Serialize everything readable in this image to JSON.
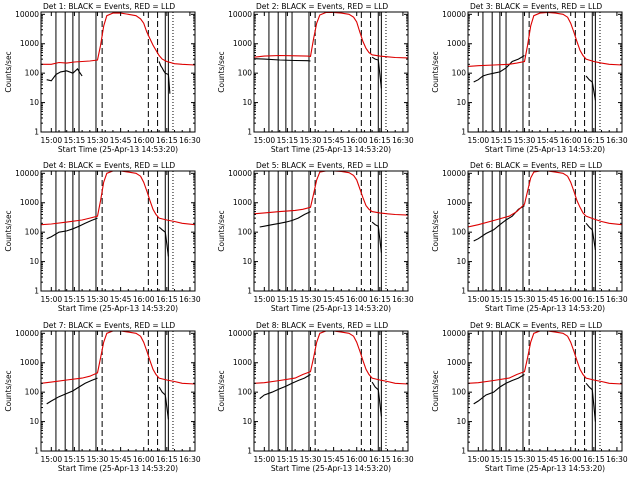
{
  "chart_data": {
    "type": "line",
    "layout": "3x3 grid",
    "yscale": "log",
    "ylim": [
      1,
      12000
    ],
    "y_ticks": [
      1,
      10,
      100,
      1000,
      10000
    ],
    "y_tick_labels": [
      "1",
      "10",
      "100",
      "1000",
      "10000"
    ],
    "ylabel": "Counts/sec",
    "xlabel": "Start Time (25-Apr-13 14:53:20)",
    "x_units": "minutes after 15:00",
    "xlim": [
      -6.7,
      93.3
    ],
    "x_ticks": [
      0,
      15,
      30,
      45,
      60,
      75,
      90
    ],
    "x_tick_labels": [
      "15:00",
      "15:15",
      "15:30",
      "15:45",
      "16:00",
      "16:15",
      "16:30"
    ],
    "series_legend": [
      {
        "name": "Events",
        "color": "#000000"
      },
      {
        "name": "LLD",
        "color": "#dd0000"
      }
    ],
    "vertical_markers": {
      "solid": [
        3,
        9,
        14,
        18,
        29
      ],
      "dashed": [
        33,
        63,
        69
      ],
      "dotted": [
        79
      ],
      "solid_late": [
        74,
        76
      ]
    },
    "panels": [
      {
        "title": "Det 1: BLACK = Events, RED = LLD",
        "series": [
          {
            "name": "Events",
            "x": [
              -3,
              0,
              1.5,
              3,
              6,
              10,
              14,
              17,
              18,
              20
            ],
            "y": [
              60,
              55,
              70,
              90,
              110,
              120,
              100,
              140,
              115,
              80
            ]
          },
          {
            "name": "LLD",
            "x": [
              -6.7,
              0,
              5,
              10,
              15,
              20,
              25,
              30,
              32,
              34,
              36,
              40,
              45,
              50,
              55,
              58,
              60,
              62,
              64,
              66,
              68,
              70,
              72,
              75,
              80,
              85,
              93.3
            ],
            "y": [
              200,
              200,
              230,
              220,
              240,
              250,
              260,
              280,
              900,
              4000,
              9000,
              11000,
              11000,
              10000,
              9000,
              7000,
              5000,
              2500,
              1500,
              900,
              600,
              400,
              300,
              250,
              210,
              200,
              190
            ]
          },
          {
            "name": "Events (late)",
            "x": [
              70,
              71,
              72,
              73,
              74,
              76,
              77
            ],
            "y": [
              250,
              180,
              150,
              120,
              100,
              90,
              20
            ]
          }
        ]
      },
      {
        "title": "Det 2: BLACK = Events, RED = LLD",
        "series": [
          {
            "name": "Events",
            "x": [
              -6.7,
              0,
              10,
              20,
              28,
              30
            ],
            "y": [
              310,
              300,
              280,
              270,
              265,
              260
            ]
          },
          {
            "name": "LLD",
            "x": [
              -6.7,
              0,
              10,
              20,
              28,
              30,
              32,
              34,
              36,
              40,
              45,
              50,
              55,
              58,
              60,
              62,
              64,
              66,
              68,
              70,
              75,
              80,
              85,
              93.3
            ],
            "y": [
              350,
              380,
              400,
              390,
              380,
              370,
              1500,
              5000,
              9500,
              11500,
              11500,
              11000,
              10000,
              8000,
              5500,
              2500,
              1200,
              700,
              500,
              420,
              380,
              360,
              340,
              330
            ]
          },
          {
            "name": "Events (late)",
            "x": [
              70,
              72,
              74,
              76
            ],
            "y": [
              350,
              300,
              280,
              30
            ]
          }
        ]
      },
      {
        "title": "Det 3: BLACK = Events, RED = LLD",
        "series": [
          {
            "name": "Events",
            "x": [
              -3,
              0,
              3,
              6,
              10,
              14,
              18,
              22,
              26,
              30
            ],
            "y": [
              50,
              60,
              80,
              90,
              100,
              110,
              150,
              250,
              300,
              400
            ]
          },
          {
            "name": "LLD",
            "x": [
              -6.7,
              0,
              10,
              20,
              25,
              30,
              32,
              34,
              36,
              40,
              45,
              50,
              55,
              58,
              60,
              62,
              64,
              66,
              68,
              70,
              75,
              80,
              85,
              93.3
            ],
            "y": [
              170,
              180,
              190,
              200,
              220,
              250,
              900,
              4000,
              9000,
              11000,
              11500,
              11000,
              10000,
              8000,
              5000,
              2500,
              1200,
              600,
              400,
              300,
              250,
              220,
              200,
              190
            ]
          },
          {
            "name": "Events (late)",
            "x": [
              70,
              72,
              74,
              76
            ],
            "y": [
              80,
              60,
              50,
              12
            ]
          }
        ]
      },
      {
        "title": "Det 4: BLACK = Events, RED = LLD",
        "series": [
          {
            "name": "Events",
            "x": [
              -3,
              0,
              5,
              10,
              14,
              18,
              22,
              26,
              30
            ],
            "y": [
              60,
              70,
              100,
              110,
              130,
              160,
              200,
              250,
              300
            ]
          },
          {
            "name": "LLD",
            "x": [
              -6.7,
              0,
              10,
              20,
              25,
              30,
              32,
              34,
              36,
              40,
              45,
              50,
              55,
              58,
              60,
              62,
              64,
              66,
              68,
              70,
              75,
              80,
              85,
              93.3
            ],
            "y": [
              180,
              190,
              220,
              260,
              300,
              350,
              1200,
              5000,
              10000,
              12000,
              12000,
              11000,
              10000,
              8000,
              5000,
              2500,
              1200,
              600,
              400,
              300,
              260,
              230,
              200,
              180
            ]
          },
          {
            "name": "Events (late)",
            "x": [
              70,
              72,
              74,
              76
            ],
            "y": [
              150,
              120,
              100,
              15
            ]
          }
        ]
      },
      {
        "title": "Det 5: BLACK = Events, RED = LLD",
        "series": [
          {
            "name": "Events",
            "x": [
              -3,
              0,
              5,
              10,
              14,
              18,
              22,
              26,
              30
            ],
            "y": [
              150,
              160,
              180,
              200,
              220,
              250,
              300,
              400,
              500
            ]
          },
          {
            "name": "LLD",
            "x": [
              -6.7,
              0,
              10,
              20,
              25,
              30,
              32,
              34,
              36,
              40,
              45,
              50,
              55,
              58,
              60,
              62,
              64,
              66,
              68,
              70,
              75,
              80,
              85,
              93.3
            ],
            "y": [
              420,
              450,
              500,
              550,
              600,
              700,
              2000,
              6000,
              11000,
              12000,
              12000,
              11500,
              10500,
              8500,
              6000,
              3000,
              1500,
              800,
              600,
              500,
              450,
              420,
              400,
              380
            ]
          },
          {
            "name": "Events (late)",
            "x": [
              70,
              72,
              74,
              76
            ],
            "y": [
              220,
              180,
              160,
              20
            ]
          }
        ]
      },
      {
        "title": "Det 6: BLACK = Events, RED = LLD",
        "series": [
          {
            "name": "Events",
            "x": [
              -3,
              0,
              5,
              10,
              14,
              18,
              22,
              26,
              30
            ],
            "y": [
              50,
              60,
              90,
              120,
              180,
              260,
              350,
              600,
              800
            ]
          },
          {
            "name": "LLD",
            "x": [
              -6.7,
              0,
              10,
              20,
              25,
              30,
              32,
              34,
              36,
              40,
              45,
              50,
              55,
              58,
              60,
              62,
              64,
              66,
              68,
              70,
              75,
              80,
              85,
              93.3
            ],
            "y": [
              150,
              180,
              250,
              350,
              500,
              900,
              2500,
              7000,
              11000,
              12000,
              12000,
              11000,
              10000,
              8000,
              5000,
              2500,
              1200,
              700,
              450,
              350,
              280,
              230,
              200,
              180
            ]
          },
          {
            "name": "Events (late)",
            "x": [
              70,
              72,
              74,
              76
            ],
            "y": [
              200,
              150,
              120,
              25
            ]
          }
        ]
      },
      {
        "title": "Det 7: BLACK = Events, RED = LLD",
        "series": [
          {
            "name": "Events",
            "x": [
              -3,
              0,
              5,
              10,
              14,
              18,
              22,
              26,
              30
            ],
            "y": [
              40,
              50,
              70,
              90,
              110,
              150,
              200,
              250,
              300
            ]
          },
          {
            "name": "LLD",
            "x": [
              -6.7,
              0,
              10,
              20,
              25,
              30,
              32,
              34,
              36,
              40,
              45,
              50,
              55,
              58,
              60,
              62,
              64,
              66,
              68,
              70,
              75,
              80,
              85,
              93.3
            ],
            "y": [
              200,
              220,
              260,
              300,
              350,
              450,
              1500,
              5000,
              10000,
              12000,
              12000,
              11000,
              10000,
              8000,
              5000,
              2500,
              1200,
              600,
              400,
              300,
              260,
              230,
              200,
              190
            ]
          },
          {
            "name": "Events (late)",
            "x": [
              70,
              72,
              74,
              76
            ],
            "y": [
              150,
              100,
              80,
              12
            ]
          }
        ]
      },
      {
        "title": "Det 8: BLACK = Events, RED = LLD",
        "series": [
          {
            "name": "Events",
            "x": [
              -3,
              0,
              5,
              10,
              14,
              18,
              22,
              26,
              30
            ],
            "y": [
              60,
              80,
              100,
              130,
              160,
              200,
              250,
              300,
              400
            ]
          },
          {
            "name": "LLD",
            "x": [
              -6.7,
              0,
              10,
              20,
              25,
              30,
              32,
              34,
              36,
              40,
              45,
              50,
              55,
              58,
              60,
              62,
              64,
              66,
              68,
              70,
              75,
              80,
              85,
              93.3
            ],
            "y": [
              200,
              210,
              250,
              300,
              400,
              500,
              1500,
              5000,
              10000,
              12000,
              12000,
              11000,
              10000,
              8000,
              5000,
              2500,
              1200,
              600,
              400,
              300,
              260,
              230,
              200,
              190
            ]
          },
          {
            "name": "Events (late)",
            "x": [
              70,
              72,
              74,
              76
            ],
            "y": [
              220,
              150,
              120,
              15
            ]
          }
        ]
      },
      {
        "title": "Det 9: BLACK = Events, RED = LLD",
        "series": [
          {
            "name": "Events",
            "x": [
              -3,
              0,
              5,
              10,
              14,
              18,
              22,
              26,
              30
            ],
            "y": [
              40,
              50,
              80,
              100,
              150,
              200,
              250,
              300,
              400
            ]
          },
          {
            "name": "LLD",
            "x": [
              -6.7,
              0,
              10,
              20,
              25,
              30,
              32,
              34,
              36,
              40,
              45,
              50,
              55,
              58,
              60,
              62,
              64,
              66,
              68,
              70,
              75,
              80,
              85,
              93.3
            ],
            "y": [
              200,
              210,
              250,
              300,
              400,
              500,
              1500,
              5000,
              10000,
              12000,
              12000,
              11000,
              10000,
              8000,
              5000,
              2500,
              1200,
              600,
              400,
              300,
              260,
              230,
              200,
              190
            ]
          },
          {
            "name": "Events (late)",
            "x": [
              70,
              72,
              74,
              76
            ],
            "y": [
              200,
              150,
              120,
              10
            ]
          }
        ]
      }
    ]
  }
}
